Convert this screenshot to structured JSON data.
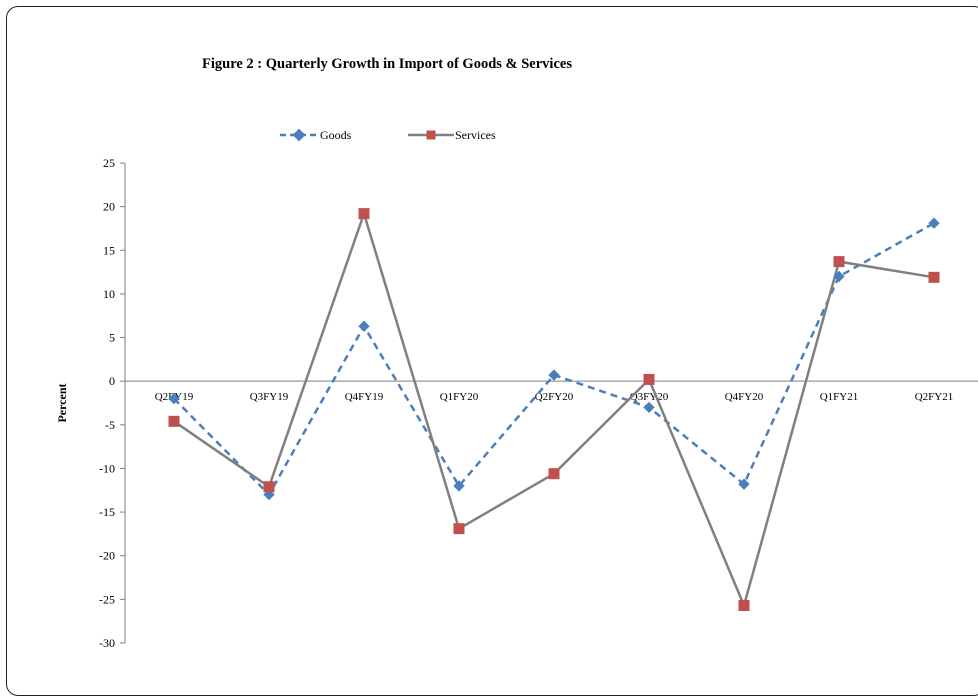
{
  "chart_data": {
    "type": "line",
    "title": "Figure 2 : Quarterly Growth in Import  of Goods & Services",
    "xlabel": "",
    "ylabel": "Percent",
    "categories": [
      "Q2FY19",
      "Q3FY19",
      "Q4FY19",
      "Q1FY20",
      "Q2FY20",
      "Q3FY20",
      "Q4FY20",
      "Q1FY21",
      "Q2FY21"
    ],
    "ylim": [
      -30,
      25
    ],
    "yticks": [
      25,
      20,
      15,
      10,
      5,
      0,
      -5,
      -10,
      -15,
      -20,
      -25,
      -30
    ],
    "grid": false,
    "legend_position": "top",
    "series": [
      {
        "name": "Goods",
        "values": [
          -2.0,
          -13.0,
          6.3,
          -12.0,
          0.7,
          -3.0,
          -11.8,
          12.0,
          18.1
        ],
        "color": "#4a7ebf",
        "style": "dashed",
        "marker": "diamond"
      },
      {
        "name": "Services",
        "values": [
          -4.6,
          -12.1,
          19.2,
          -16.9,
          -10.6,
          0.2,
          -25.7,
          13.7,
          11.9
        ],
        "color": "#808080",
        "style": "solid",
        "marker": "square",
        "marker_color": "#c0504d"
      }
    ]
  }
}
